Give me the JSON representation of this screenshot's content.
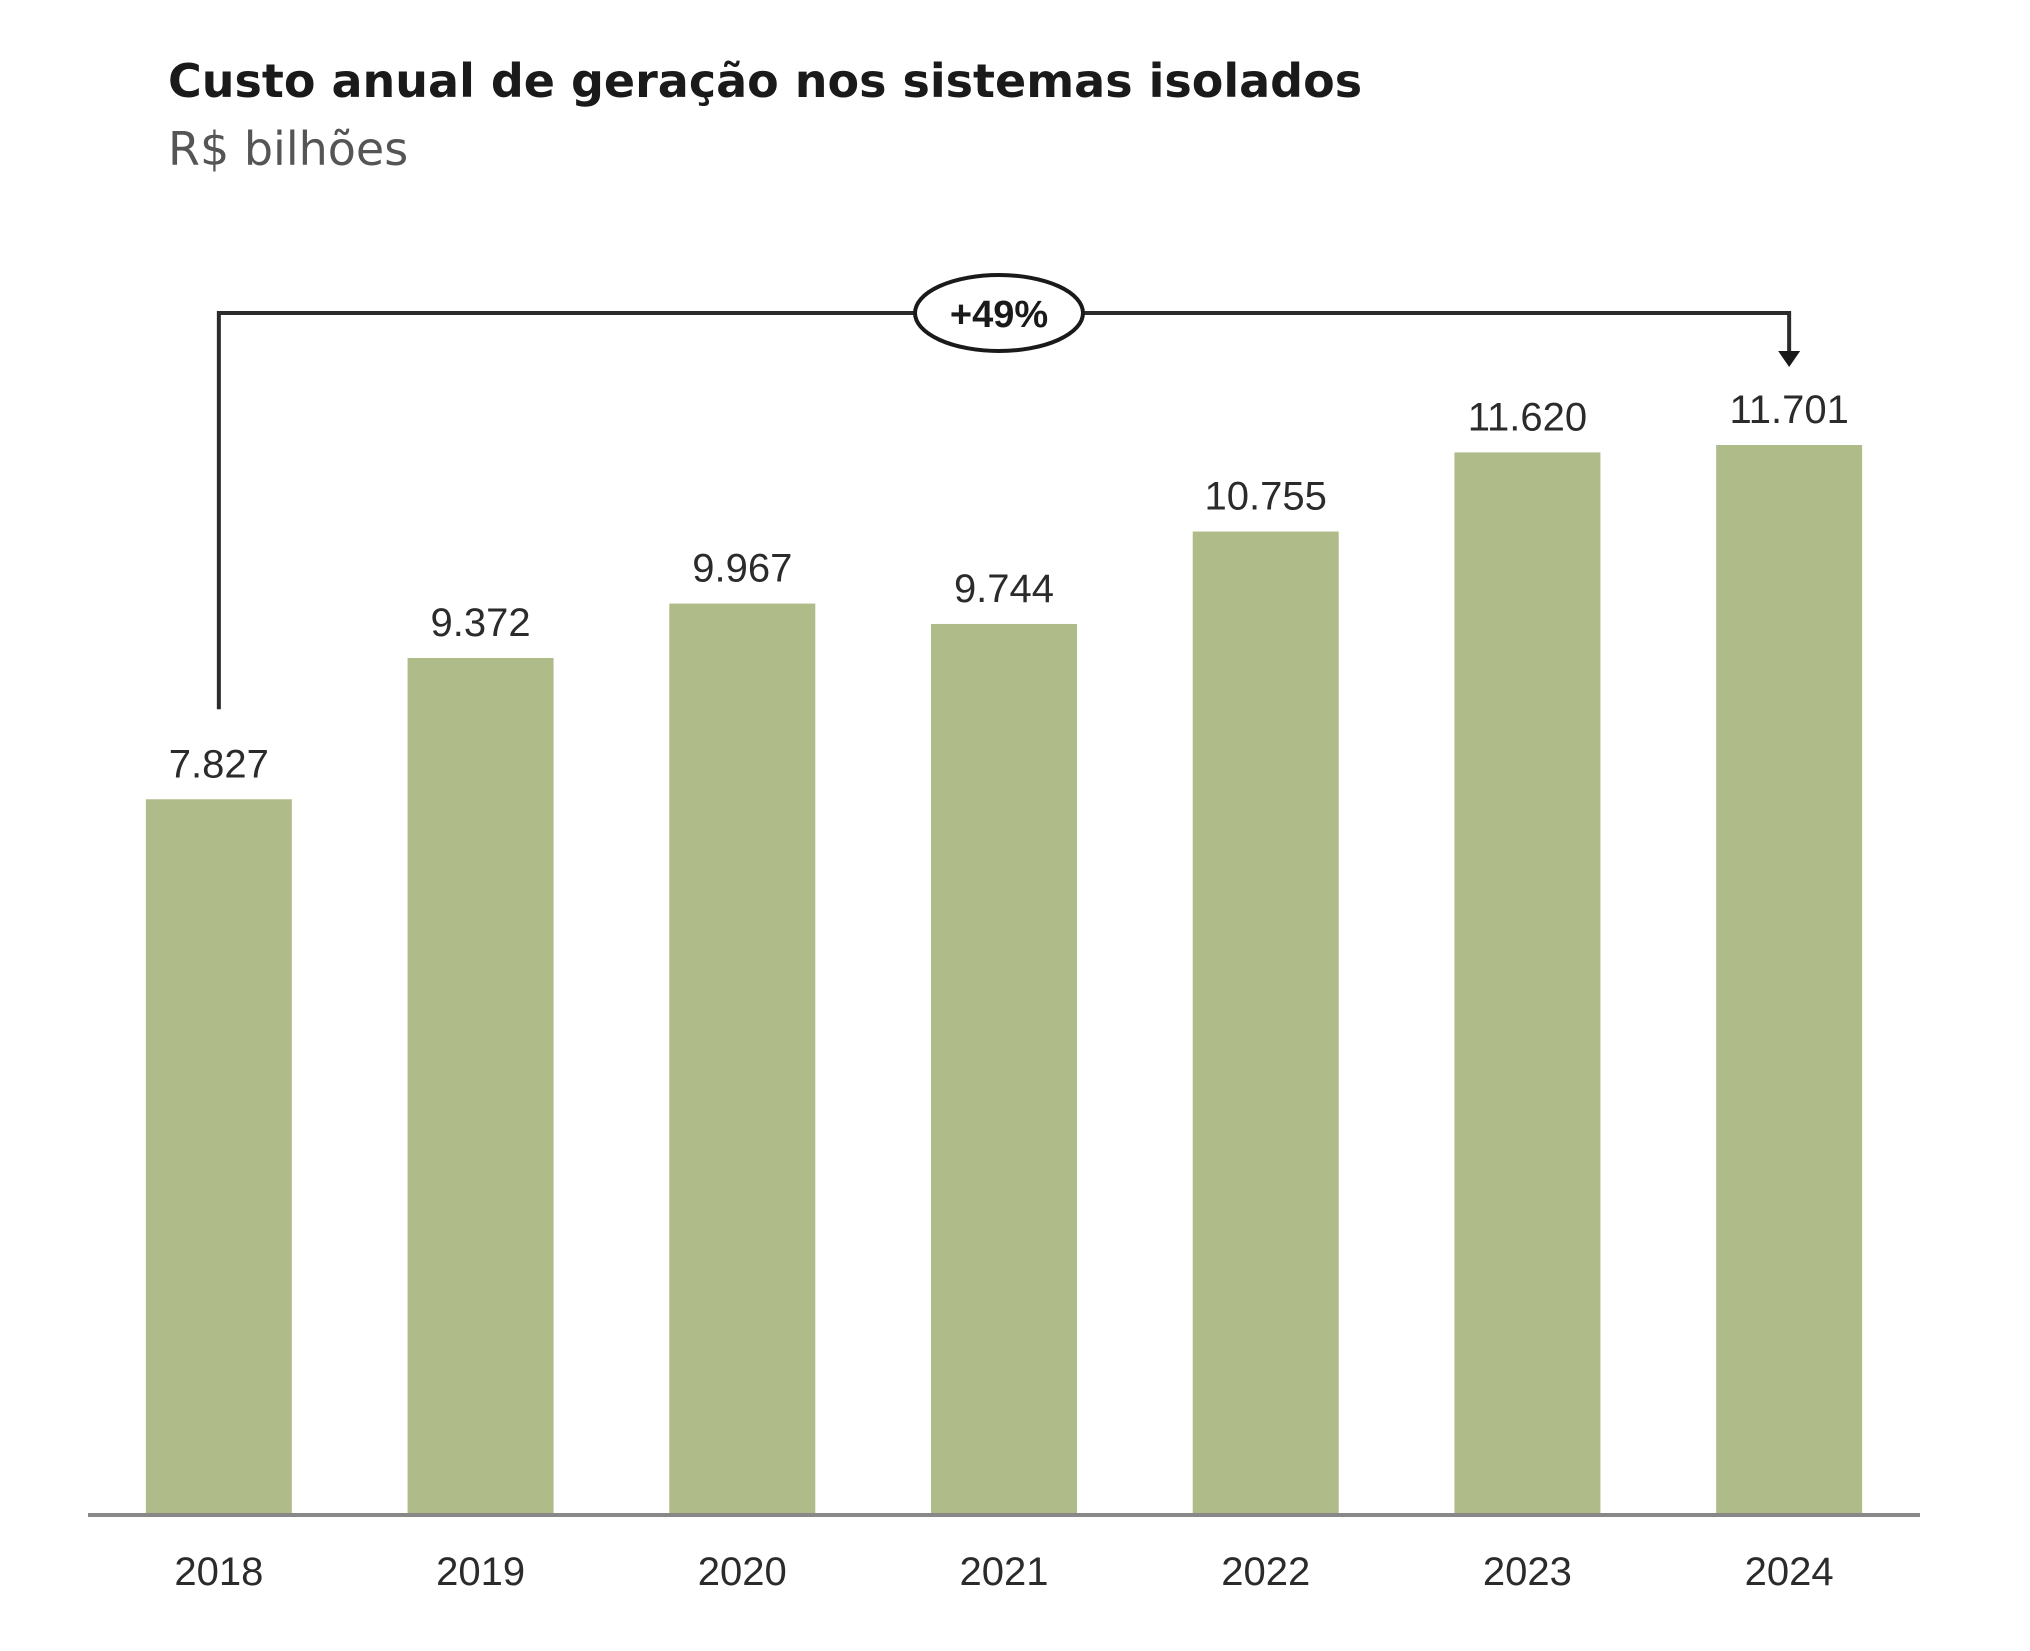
{
  "chart_data": {
    "type": "bar",
    "title": "Custo anual de geração nos sistemas isolados",
    "subtitle": "R$ bilhões",
    "xlabel": "",
    "ylabel": "",
    "categories": [
      "2018",
      "2019",
      "2020",
      "2021",
      "2022",
      "2023",
      "2024"
    ],
    "values": [
      7.827,
      9.372,
      9.967,
      9.744,
      10.755,
      11.62,
      11.701
    ],
    "value_labels": [
      "7.827",
      "9.372",
      "9.967",
      "9.744",
      "10.755",
      "11.620",
      "11.701"
    ],
    "ylim": [
      0,
      11.701
    ],
    "grid": false,
    "legend": "none",
    "bar_color": "#b0bb8a",
    "annotation": {
      "text": "+49%",
      "from": "2018",
      "to": "2024"
    }
  }
}
